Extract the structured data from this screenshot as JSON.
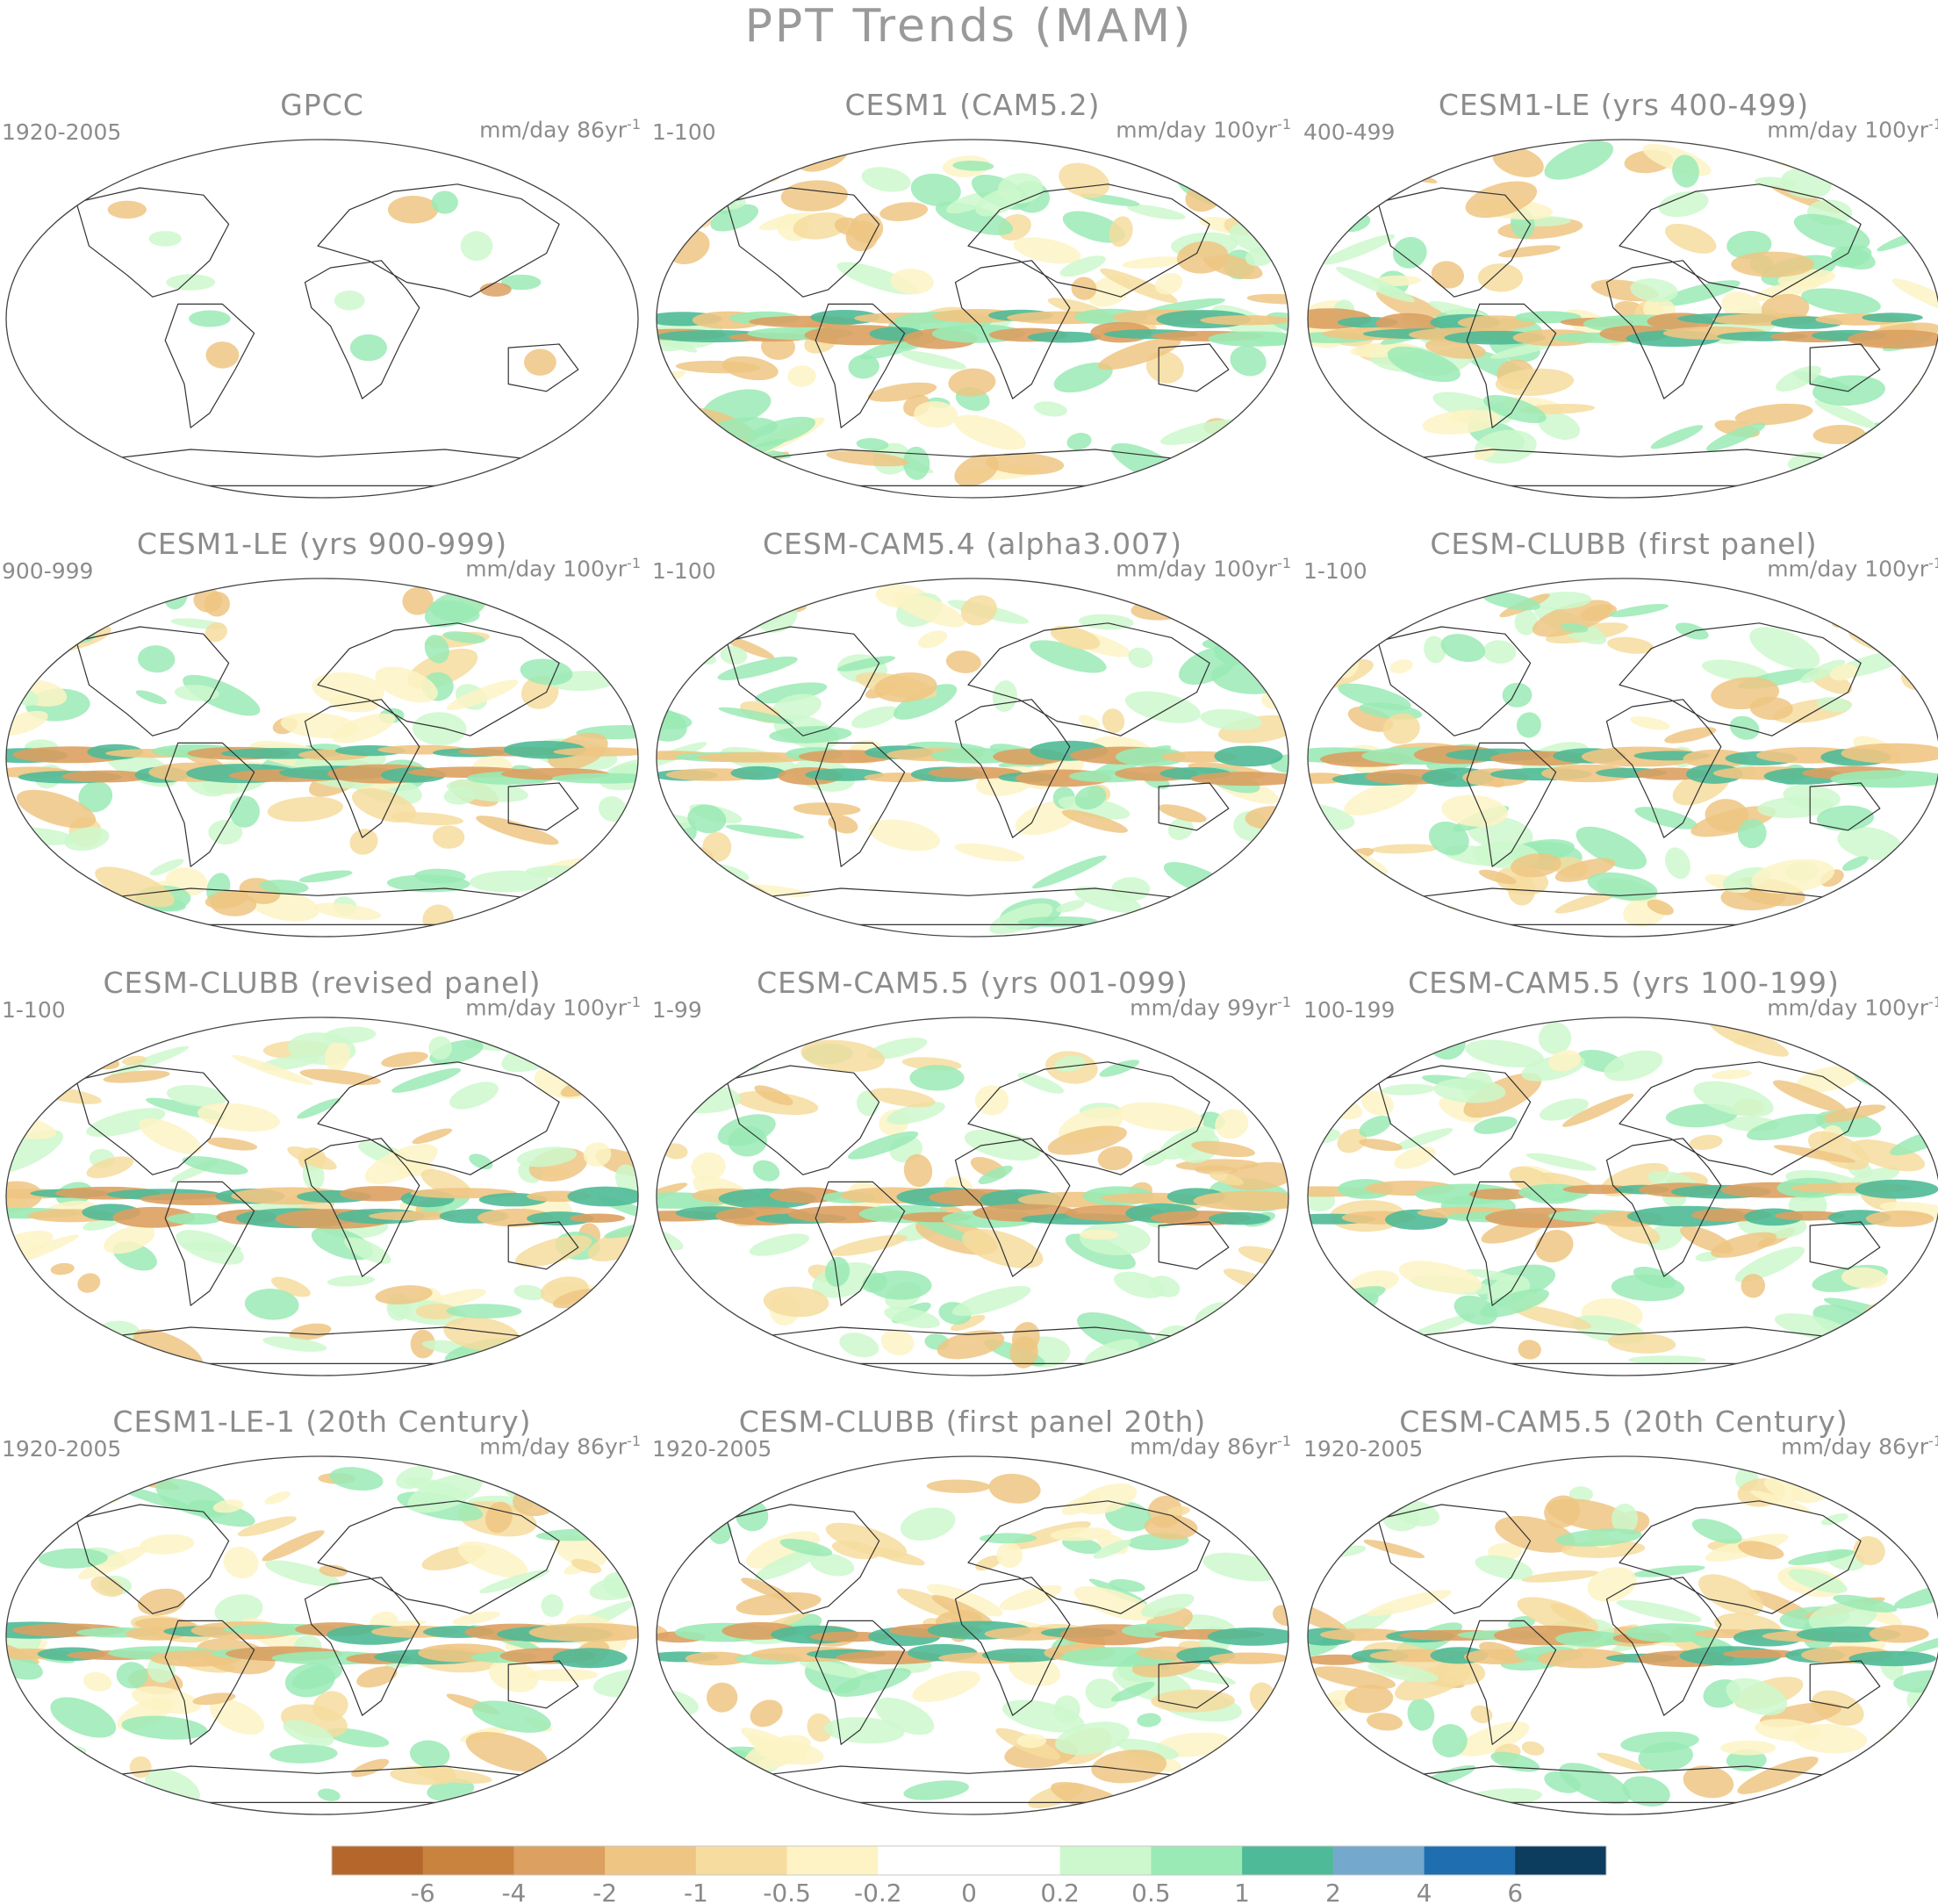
{
  "title": "PPT Trends (MAM)",
  "panels": [
    {
      "name": "GPCC",
      "period": "1920-2005",
      "units": "mm/day 86yr",
      "units_exp": "-1",
      "coverage": "land"
    },
    {
      "name": "CESM1 (CAM5.2)",
      "period": "1-100",
      "units": "mm/day 100yr",
      "units_exp": "-1",
      "coverage": "global"
    },
    {
      "name": "CESM1-LE (yrs 400-499)",
      "period": "400-499",
      "units": "mm/day 100yr",
      "units_exp": "-1",
      "coverage": "global"
    },
    {
      "name": "CESM1-LE (yrs 900-999)",
      "period": "900-999",
      "units": "mm/day 100yr",
      "units_exp": "-1",
      "coverage": "global"
    },
    {
      "name": "CESM-CAM5.4 (alpha3.007)",
      "period": "1-100",
      "units": "mm/day 100yr",
      "units_exp": "-1",
      "coverage": "global"
    },
    {
      "name": "CESM-CLUBB (first panel)",
      "period": "1-100",
      "units": "mm/day 100yr",
      "units_exp": "-1",
      "coverage": "global"
    },
    {
      "name": "CESM-CLUBB (revised panel)",
      "period": "1-100",
      "units": "mm/day 100yr",
      "units_exp": "-1",
      "coverage": "global"
    },
    {
      "name": "CESM-CAM5.5 (yrs 001-099)",
      "period": "1-99",
      "units": "mm/day 99yr",
      "units_exp": "-1",
      "coverage": "global"
    },
    {
      "name": "CESM-CAM5.5 (yrs 100-199)",
      "period": "100-199",
      "units": "mm/day 100yr",
      "units_exp": "-1",
      "coverage": "global"
    },
    {
      "name": "CESM1-LE-1 (20th Century)",
      "period": "1920-2005",
      "units": "mm/day 86yr",
      "units_exp": "-1",
      "coverage": "global"
    },
    {
      "name": "CESM-CLUBB (first panel 20th)",
      "period": "1920-2005",
      "units": "mm/day 86yr",
      "units_exp": "-1",
      "coverage": "global"
    },
    {
      "name": "CESM-CAM5.5 (20th Century)",
      "period": "1920-2005",
      "units": "mm/day 86yr",
      "units_exp": "-1",
      "coverage": "global"
    }
  ],
  "colorbar": {
    "colors": [
      "#b5672b",
      "#c9833f",
      "#dca061",
      "#efc583",
      "#f6dc9e",
      "#fdf3c4",
      "#ffffff",
      "#ffffff",
      "#cdf8cd",
      "#9aeab5",
      "#4fba97",
      "#74a9cd",
      "#1f6fb0",
      "#0c3c5e"
    ],
    "tick_labels": [
      "-6",
      "-4",
      "-2",
      "-1",
      "-0.5",
      "-0.2",
      "0",
      "0.2",
      "0.5",
      "1",
      "2",
      "4",
      "6"
    ]
  }
}
